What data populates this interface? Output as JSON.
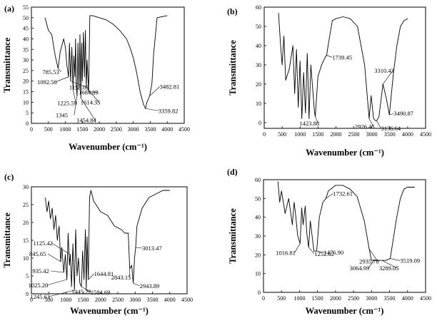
{
  "chart_data": [
    {
      "type": "line",
      "panel_label": "(a)",
      "xlabel": "Wavenumber (cm⁻¹)",
      "ylabel": "Transmittance",
      "xlim": [
        0,
        4500
      ],
      "ylim": [
        0,
        55
      ],
      "xticks": [
        0,
        500,
        1000,
        1500,
        2000,
        2500,
        3000,
        3500,
        4000,
        4500
      ],
      "yticks": [
        0,
        5,
        10,
        15,
        20,
        25,
        30,
        35,
        40,
        45,
        50,
        55
      ],
      "x": [
        400,
        500,
        600,
        700,
        785.53,
        850,
        950,
        1000,
        1040,
        1092.56,
        1120,
        1155.05,
        1190,
        1225.59,
        1250,
        1280,
        1300,
        1320,
        1345,
        1370,
        1400,
        1430,
        1454.84,
        1480,
        1500,
        1530,
        1560,
        1590,
        1614.35,
        1640,
        1684.89,
        1720,
        1800,
        2000,
        2200,
        2400,
        2600,
        2800,
        2900,
        3000,
        3100,
        3200,
        3300,
        3359.82,
        3400,
        3482.81,
        3550,
        3600,
        3700,
        4000
      ],
      "y": [
        50,
        44,
        42,
        32,
        26,
        34,
        40,
        36,
        28,
        22,
        38,
        20,
        36,
        16,
        32,
        22,
        40,
        18,
        13,
        38,
        16,
        42,
        12,
        38,
        20,
        43,
        22,
        44,
        17,
        30,
        15,
        51,
        51,
        50,
        49,
        47,
        44,
        40,
        36,
        31,
        24,
        15,
        9,
        7,
        10,
        13,
        19,
        33,
        50,
        51
      ],
      "annotations": [
        {
          "text": "785.53",
          "x": 785.53,
          "y": 26
        },
        {
          "text": "1092.56",
          "x": 1092.56,
          "y": 22
        },
        {
          "text": "1155.05",
          "x": 1155.05,
          "y": 20
        },
        {
          "text": "1225.59",
          "x": 1225.59,
          "y": 16
        },
        {
          "text": "1345",
          "x": 1345,
          "y": 13
        },
        {
          "text": "1454.84",
          "x": 1454.84,
          "y": 12
        },
        {
          "text": "1614.35",
          "x": 1614.35,
          "y": 17
        },
        {
          "text": "1684.89",
          "x": 1684.89,
          "y": 15
        },
        {
          "text": "3482.81",
          "x": 3482.81,
          "y": 13
        },
        {
          "text": "3359.82",
          "x": 3359.82,
          "y": 7
        }
      ]
    },
    {
      "type": "line",
      "panel_label": "(b)",
      "xlabel": "Wavenumber (cm⁻¹)",
      "ylabel": "Transmittance",
      "xlim": [
        0,
        4500
      ],
      "ylim": [
        -3,
        60
      ],
      "xticks": [
        0,
        500,
        1000,
        1500,
        2000,
        2500,
        3000,
        3500,
        4000,
        4500
      ],
      "yticks": [
        0,
        10,
        20,
        30,
        40,
        50,
        60
      ],
      "x": [
        400,
        450,
        500,
        550,
        600,
        700,
        800,
        850,
        900,
        950,
        1000,
        1050,
        1100,
        1150,
        1200,
        1250,
        1300,
        1350,
        1400,
        1423.88,
        1500,
        1600,
        1700,
        1739.45,
        1800,
        1900,
        2000,
        2200,
        2400,
        2600,
        2800,
        2926.45,
        2980,
        3050,
        3100,
        3136.64,
        3200,
        3310.43,
        3400,
        3490.87,
        3600,
        3700,
        3800,
        3900,
        4000
      ],
      "y": [
        57,
        42,
        30,
        45,
        22,
        28,
        40,
        15,
        38,
        8,
        32,
        2,
        26,
        5,
        36,
        2,
        30,
        18,
        6,
        3,
        24,
        30,
        34,
        35,
        42,
        53,
        54,
        55,
        54,
        50,
        30,
        2,
        14,
        2,
        1,
        1,
        3,
        20,
        13,
        4,
        25,
        40,
        50,
        53,
        54
      ],
      "annotations": [
        {
          "text": "1739.45",
          "x": 1739.45,
          "y": 35
        },
        {
          "text": "1423.88",
          "x": 1423.88,
          "y": 3
        },
        {
          "text": "2926.45",
          "x": 2926.45,
          "y": 2
        },
        {
          "text": "3136.64",
          "x": 3136.64,
          "y": 1
        },
        {
          "text": "3310.43",
          "x": 3310.43,
          "y": 20
        },
        {
          "text": "3490.87",
          "x": 3490.87,
          "y": 4
        }
      ]
    },
    {
      "type": "line",
      "panel_label": "(c)",
      "xlabel": "Wavenumber (cm⁻¹)",
      "ylabel": "Transmittance",
      "xlim": [
        0,
        4500
      ],
      "ylim": [
        0,
        30
      ],
      "xticks": [
        0,
        500,
        1000,
        1500,
        2000,
        2500,
        3000,
        3500,
        4000,
        4500
      ],
      "yticks": [
        0,
        5,
        10,
        15,
        20,
        25,
        30
      ],
      "x": [
        400,
        450,
        500,
        550,
        600,
        650,
        700,
        750,
        800,
        845.65,
        880,
        935.42,
        980,
        1025.2,
        1060,
        1100,
        1125.42,
        1160,
        1200,
        1245.63,
        1280,
        1320,
        1360,
        1400,
        1445.22,
        1480,
        1520,
        1560,
        1584.69,
        1610,
        1644.81,
        1680,
        1720,
        1800,
        2000,
        2200,
        2400,
        2600,
        2700,
        2800,
        2843.15,
        2900,
        2943.89,
        2980,
        3013.47,
        3050,
        3200,
        3400,
        3600,
        3800,
        4000
      ],
      "y": [
        27,
        23,
        26,
        21,
        24,
        18,
        22,
        15,
        19,
        9,
        13,
        6,
        11,
        4,
        17,
        8,
        11,
        2,
        14,
        1,
        18,
        5,
        10,
        3,
        2,
        12,
        4,
        18,
        1,
        16,
        4,
        27,
        29,
        26,
        23,
        22,
        19,
        18,
        17,
        17,
        7,
        8,
        3,
        10,
        13,
        19,
        24,
        27,
        28,
        29,
        29
      ],
      "annotations": [
        {
          "text": "1125.42",
          "x": 1125.42,
          "y": 11
        },
        {
          "text": "845.65",
          "x": 845.65,
          "y": 9
        },
        {
          "text": "935.42",
          "x": 935.42,
          "y": 6
        },
        {
          "text": "1025.20",
          "x": 1025.2,
          "y": 4
        },
        {
          "text": "1245.63",
          "x": 1245.63,
          "y": 1
        },
        {
          "text": "1445.22",
          "x": 1445.22,
          "y": 2
        },
        {
          "text": "1584.69",
          "x": 1584.69,
          "y": 1
        },
        {
          "text": "1644.81",
          "x": 1644.81,
          "y": 4
        },
        {
          "text": "2843.15",
          "x": 2843.15,
          "y": 7
        },
        {
          "text": "2943.89",
          "x": 2943.89,
          "y": 3
        },
        {
          "text": "3013.47",
          "x": 3013.47,
          "y": 13
        }
      ]
    },
    {
      "type": "line",
      "panel_label": "(d)",
      "xlabel": "Wavenumber (cm⁻¹)",
      "ylabel": "Transmittance",
      "xlim": [
        0,
        4500
      ],
      "ylim": [
        0,
        60
      ],
      "xticks": [
        0,
        500,
        1000,
        1500,
        2000,
        2500,
        3000,
        3500,
        4000,
        4500
      ],
      "yticks": [
        0,
        10,
        20,
        30,
        40,
        50,
        60
      ],
      "x": [
        400,
        450,
        500,
        600,
        700,
        800,
        850,
        900,
        950,
        1016.81,
        1060,
        1100,
        1160,
        1200,
        1252.82,
        1300,
        1350,
        1400,
        1476.9,
        1550,
        1650,
        1732.61,
        1800,
        2000,
        2200,
        2400,
        2600,
        2800,
        2935.78,
        3000,
        3064.99,
        3150,
        3289.05,
        3400,
        3519.09,
        3600,
        3700,
        3800,
        3900,
        4000,
        4200
      ],
      "y": [
        59,
        48,
        54,
        42,
        50,
        36,
        48,
        40,
        30,
        26,
        45,
        36,
        46,
        32,
        24,
        38,
        30,
        22,
        22,
        40,
        48,
        50,
        54,
        57,
        57,
        55,
        51,
        38,
        23,
        17,
        17,
        17,
        17,
        17,
        18,
        28,
        40,
        50,
        55,
        56,
        56
      ],
      "annotations": [
        {
          "text": "1732.61",
          "x": 1732.61,
          "y": 50
        },
        {
          "text": "1476.90",
          "x": 1476.9,
          "y": 22
        },
        {
          "text": "1252.82",
          "x": 1252.82,
          "y": 24
        },
        {
          "text": "1016.81",
          "x": 1016.81,
          "y": 26
        },
        {
          "text": "2935.78",
          "x": 2935.78,
          "y": 23
        },
        {
          "text": "3064.99",
          "x": 3064.99,
          "y": 17
        },
        {
          "text": "3289.05",
          "x": 3289.05,
          "y": 17
        },
        {
          "text": "3519.09",
          "x": 3519.09,
          "y": 18
        }
      ]
    }
  ]
}
